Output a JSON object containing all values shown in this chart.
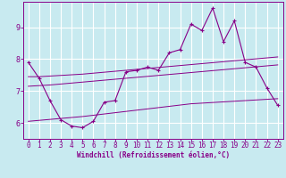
{
  "xlabel": "Windchill (Refroidissement éolien,°C)",
  "background_color": "#c8eaf0",
  "line_color": "#880088",
  "grid_color": "#ffffff",
  "x_hours": [
    0,
    1,
    2,
    3,
    4,
    5,
    6,
    7,
    8,
    9,
    10,
    11,
    12,
    13,
    14,
    15,
    16,
    17,
    18,
    19,
    20,
    21,
    22,
    23
  ],
  "temp_line": [
    7.9,
    7.4,
    6.7,
    6.1,
    5.9,
    5.85,
    6.05,
    6.65,
    6.7,
    7.6,
    7.65,
    7.75,
    7.65,
    8.2,
    8.3,
    9.1,
    8.9,
    9.6,
    8.55,
    9.2,
    7.9,
    7.75,
    7.1,
    6.55
  ],
  "ref_line1": [
    7.45,
    7.45,
    7.47,
    7.49,
    7.51,
    7.53,
    7.56,
    7.59,
    7.62,
    7.65,
    7.68,
    7.71,
    7.74,
    7.77,
    7.8,
    7.83,
    7.86,
    7.89,
    7.92,
    7.95,
    7.98,
    8.01,
    8.04,
    8.07
  ],
  "ref_line2": [
    7.15,
    7.17,
    7.19,
    7.22,
    7.25,
    7.28,
    7.31,
    7.34,
    7.37,
    7.4,
    7.43,
    7.46,
    7.49,
    7.52,
    7.55,
    7.58,
    7.61,
    7.64,
    7.67,
    7.7,
    7.73,
    7.76,
    7.79,
    7.82
  ],
  "ref_line3": [
    6.05,
    6.08,
    6.11,
    6.14,
    6.17,
    6.2,
    6.24,
    6.28,
    6.32,
    6.36,
    6.4,
    6.44,
    6.48,
    6.52,
    6.56,
    6.6,
    6.62,
    6.64,
    6.66,
    6.68,
    6.7,
    6.72,
    6.74,
    6.76
  ],
  "xlim": [
    -0.5,
    23.5
  ],
  "ylim": [
    5.5,
    9.8
  ],
  "yticks": [
    6,
    7,
    8,
    9
  ],
  "xticks": [
    0,
    1,
    2,
    3,
    4,
    5,
    6,
    7,
    8,
    9,
    10,
    11,
    12,
    13,
    14,
    15,
    16,
    17,
    18,
    19,
    20,
    21,
    22,
    23
  ],
  "tick_fontsize": 5.5,
  "xlabel_fontsize": 5.5
}
